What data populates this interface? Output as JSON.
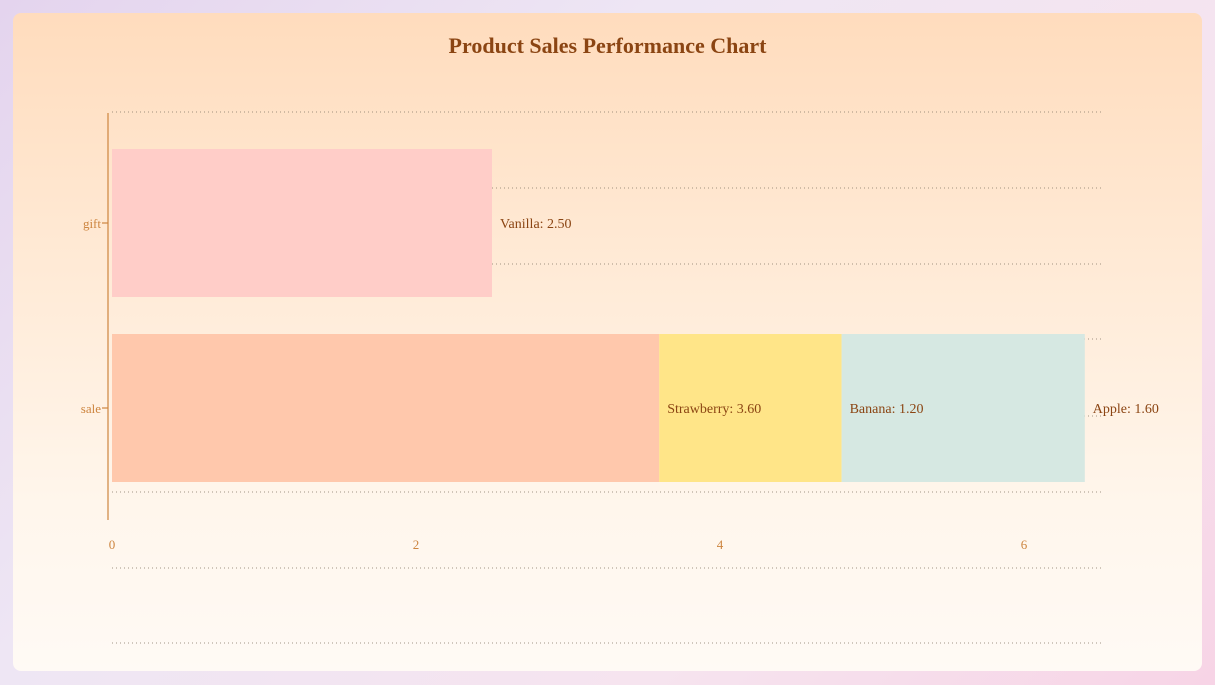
{
  "chart_data": {
    "type": "bar",
    "orientation": "horizontal",
    "stacked": true,
    "title": "Product Sales Performance Chart",
    "xlabel": "",
    "ylabel": "",
    "categories": [
      "gift",
      "sale"
    ],
    "xlim": [
      0,
      6.5
    ],
    "x_ticks": [
      0,
      2,
      4,
      6
    ],
    "x_tick_labels": [
      "0",
      "2",
      "4",
      "6"
    ],
    "grid": true,
    "legend": "none",
    "segments": [
      {
        "category": "gift",
        "name": "Vanilla",
        "value": 2.5,
        "label": "Vanilla: 2.50",
        "color": "#ffcdc8"
      },
      {
        "category": "sale",
        "name": "Strawberry",
        "value": 3.6,
        "label": "Strawberry: 3.60",
        "color": "#ffc8ac"
      },
      {
        "category": "sale",
        "name": "Banana",
        "value": 1.2,
        "label": "Banana: 1.20",
        "color": "#ffe588"
      },
      {
        "category": "sale",
        "name": "Apple",
        "value": 1.6,
        "label": "Apple: 1.60",
        "color": "#d6e8e2"
      }
    ],
    "colors": {
      "title": "#8b4513",
      "axis": "#cd853f",
      "tick_label": "#cd853f",
      "data_label": "#8b4513",
      "grid": "#8b7d6b"
    }
  }
}
